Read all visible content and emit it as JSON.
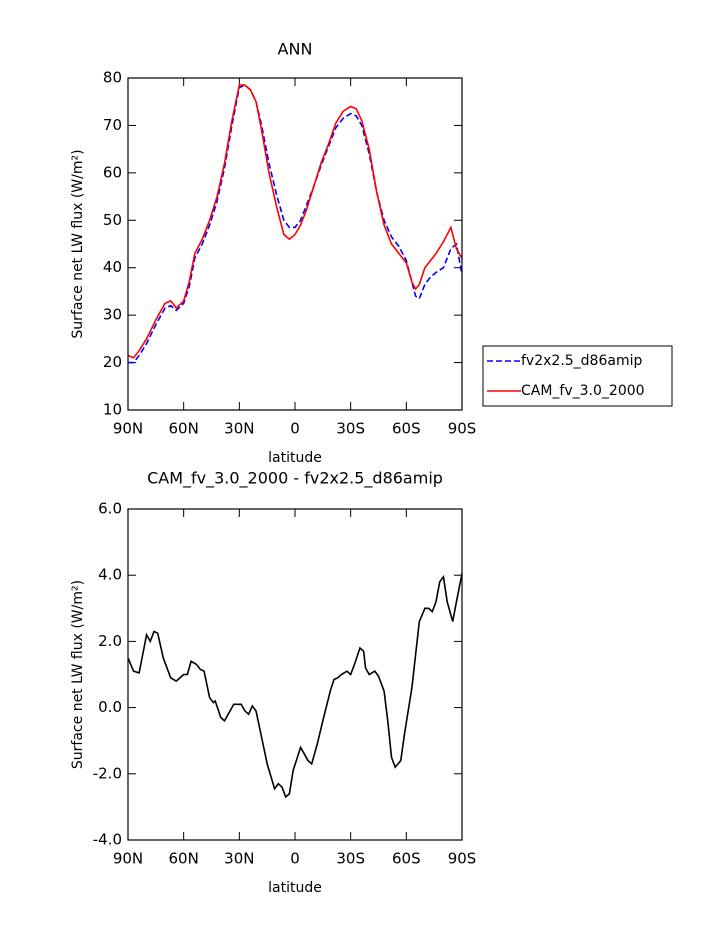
{
  "chart_data": [
    {
      "type": "line",
      "title": "ANN",
      "x_label": "latitude",
      "y_label": "Surface net LW flux (W/m²)",
      "x": [
        90,
        87,
        84,
        80,
        75,
        70,
        67,
        64,
        60,
        57,
        54,
        50,
        46,
        42,
        38,
        34,
        30,
        27,
        24,
        21,
        18,
        14,
        10,
        6,
        3,
        0,
        -3,
        -6,
        -10,
        -14,
        -18,
        -22,
        -26,
        -30,
        -33,
        -36,
        -40,
        -44,
        -48,
        -52,
        -56,
        -60,
        -63,
        -65,
        -67,
        -70,
        -73,
        -76,
        -80,
        -84,
        -87,
        -90
      ],
      "series": [
        {
          "name": "fv2x2.5_d86amip",
          "color": "#0000ff",
          "linestyle": "dashed",
          "values": [
            20,
            20,
            21.5,
            24,
            28,
            31.5,
            32,
            31,
            32.5,
            36,
            42,
            45,
            49,
            54,
            61,
            70,
            78,
            78.5,
            77.5,
            75,
            70,
            62,
            55.5,
            50,
            48.5,
            48.5,
            50,
            53,
            57,
            61.5,
            65.5,
            69.5,
            71.5,
            72.5,
            72,
            70,
            64,
            56,
            50,
            46.5,
            44.5,
            41.5,
            37,
            34,
            33.5,
            36.5,
            38,
            39,
            40,
            44,
            45,
            38.5
          ]
        },
        {
          "name": "CAM_fv_3.0_2000",
          "color": "#ff0000",
          "linestyle": "solid",
          "values": [
            21.5,
            21,
            22.5,
            25,
            29,
            32.5,
            33,
            31.5,
            33,
            37,
            43,
            46,
            50,
            55,
            62,
            71,
            78.5,
            78.5,
            77.5,
            75,
            69,
            60,
            53,
            47,
            46,
            47,
            49,
            52,
            57,
            62,
            66,
            70.5,
            73,
            74,
            73.5,
            71,
            65,
            56,
            49,
            45,
            43,
            41,
            37,
            35.5,
            36.5,
            40,
            41.5,
            43,
            45.5,
            48.5,
            44,
            42
          ]
        }
      ],
      "xlim": [
        90,
        -90
      ],
      "xticks": [
        {
          "value": 90,
          "label": "90N"
        },
        {
          "value": 60,
          "label": "60N"
        },
        {
          "value": 30,
          "label": "30N"
        },
        0,
        {
          "value": -30,
          "label": "30S"
        },
        {
          "value": -60,
          "label": "60S"
        },
        {
          "value": -90,
          "label": "90S"
        }
      ],
      "ylim": [
        10,
        80
      ],
      "yticks": [
        10,
        20,
        30,
        40,
        50,
        60,
        70,
        80
      ],
      "legend": "right"
    },
    {
      "type": "line",
      "title": "CAM_fv_3.0_2000 - fv2x2.5_d86amip",
      "x_label": "latitude",
      "y_label": "Surface net LW flux (W/m²)",
      "x": [
        90,
        87,
        84,
        80,
        78,
        76,
        74,
        71,
        67,
        64,
        60,
        58,
        56,
        53,
        51,
        49,
        46,
        44,
        43,
        40,
        38,
        35,
        33,
        29,
        27,
        25,
        23,
        21,
        18,
        15,
        11,
        9,
        7,
        5,
        3,
        1,
        -3,
        -5,
        -7,
        -9,
        -12,
        -15,
        -19,
        -21,
        -23,
        -25,
        -28,
        -30,
        -32,
        -35,
        -37,
        -38,
        -40,
        -43,
        -45,
        -48,
        -50,
        -52,
        -54,
        -57,
        -59,
        -61,
        -63,
        -65,
        -67,
        -70,
        -72,
        -74,
        -76,
        -78,
        -80,
        -82,
        -85,
        -87,
        -90
      ],
      "color": "#000000",
      "values": [
        1.5,
        1.1,
        1.05,
        2.2,
        2.0,
        2.3,
        2.25,
        1.5,
        0.9,
        0.8,
        1.0,
        1.0,
        1.4,
        1.3,
        1.15,
        1.1,
        0.3,
        0.15,
        0.2,
        -0.3,
        -0.4,
        -0.1,
        0.1,
        0.1,
        -0.1,
        -0.2,
        0.05,
        -0.1,
        -0.9,
        -1.7,
        -2.45,
        -2.3,
        -2.4,
        -2.7,
        -2.6,
        -1.9,
        -1.2,
        -1.4,
        -1.6,
        -1.7,
        -1.1,
        -0.4,
        0.5,
        0.85,
        0.9,
        1.0,
        1.1,
        1.0,
        1.3,
        1.8,
        1.7,
        1.2,
        1.0,
        1.1,
        0.95,
        0.5,
        -0.4,
        -1.5,
        -1.8,
        -1.6,
        -0.8,
        -0.1,
        0.6,
        1.6,
        2.6,
        3.0,
        3.0,
        2.9,
        3.2,
        3.8,
        3.95,
        3.2,
        2.6,
        3.2,
        4.05
      ],
      "xlim": [
        90,
        -90
      ],
      "xticks": [
        {
          "value": 90,
          "label": "90N"
        },
        {
          "value": 60,
          "label": "60N"
        },
        {
          "value": 30,
          "label": "30N"
        },
        0,
        {
          "value": -30,
          "label": "30S"
        },
        {
          "value": -60,
          "label": "60S"
        },
        {
          "value": -90,
          "label": "90S"
        }
      ],
      "ylim": [
        -4,
        6
      ],
      "yticks": [
        {
          "value": -4,
          "label": "-4.0"
        },
        {
          "value": -2,
          "label": "-2.0"
        },
        {
          "value": 0,
          "label": "0.0"
        },
        {
          "value": 2,
          "label": "2.0"
        },
        {
          "value": 4,
          "label": "4.0"
        },
        {
          "value": 6,
          "label": "6.0"
        }
      ]
    }
  ]
}
